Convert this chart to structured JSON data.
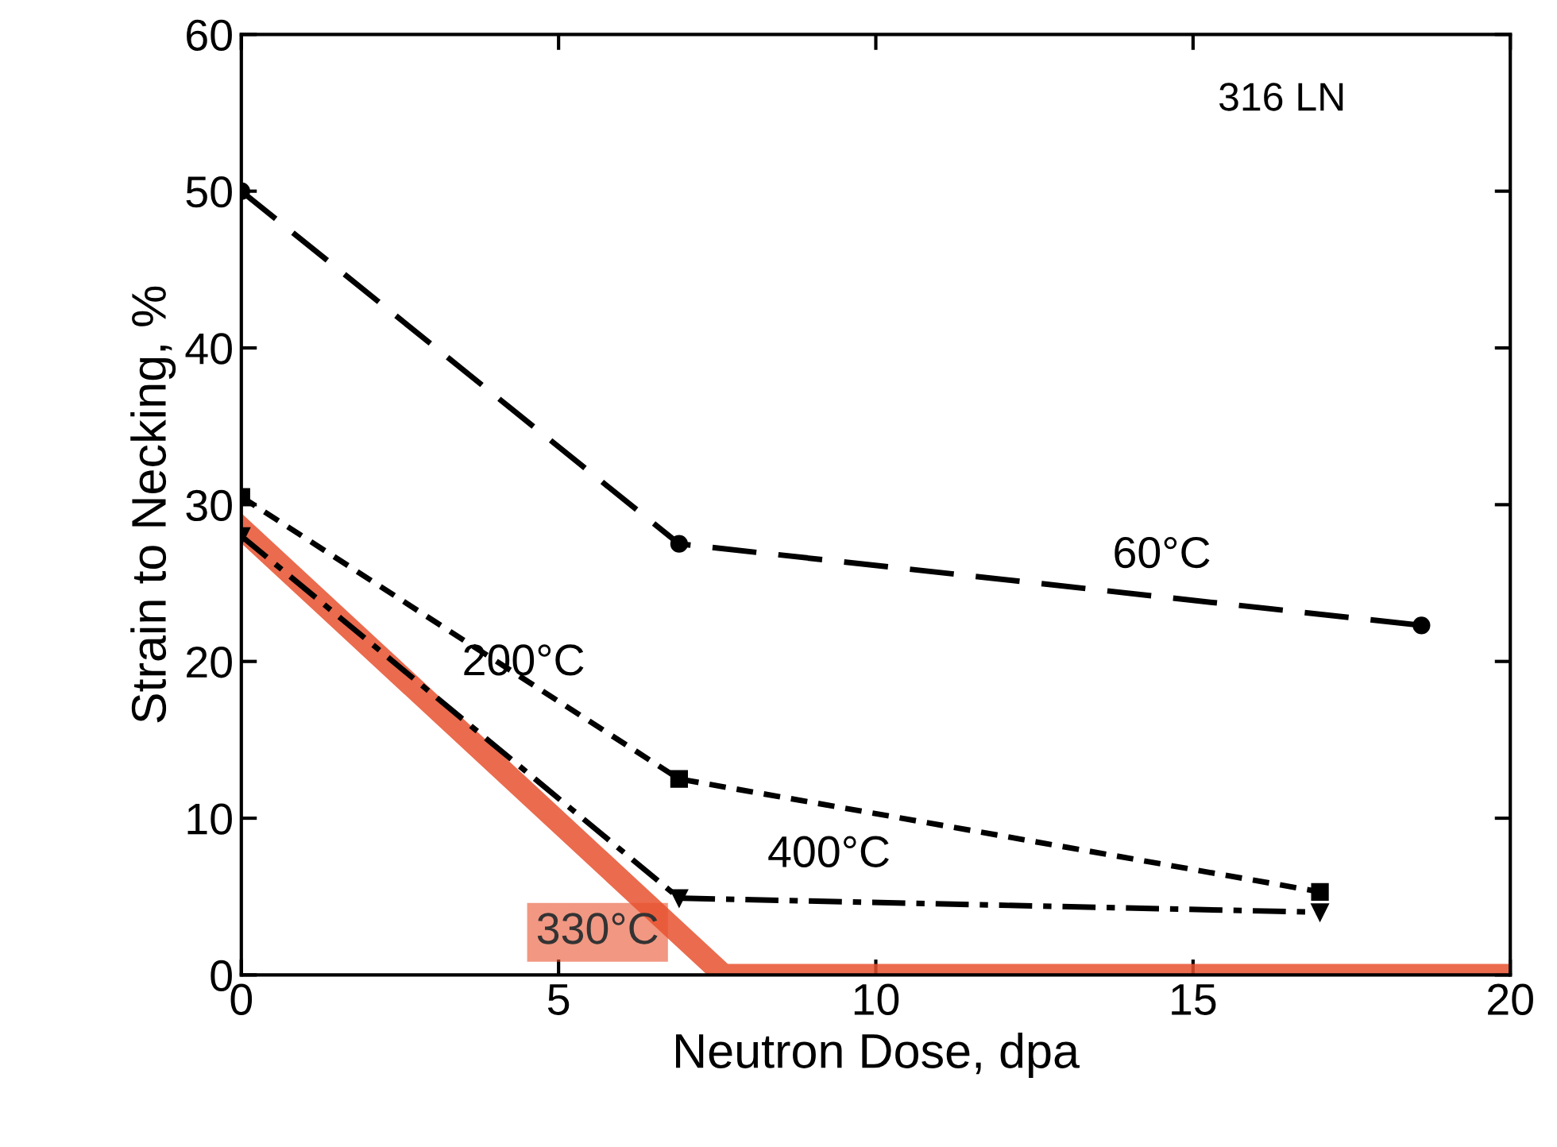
{
  "chart_data": {
    "type": "line",
    "xlabel": "Neutron Dose, dpa",
    "ylabel": "Strain to Necking, %",
    "annotations": [
      "316 LN"
    ],
    "xlim": [
      0,
      20
    ],
    "ylim": [
      0,
      60
    ],
    "xticks": [
      0,
      5,
      10,
      15,
      20
    ],
    "yticks": [
      0,
      10,
      20,
      30,
      40,
      50,
      60
    ],
    "grid": false,
    "legend": false,
    "series": [
      {
        "name": "60°C",
        "color": "#000000",
        "x": [
          0,
          6.9,
          18.6
        ],
        "values": [
          50,
          27.5,
          22.3
        ],
        "line_style": "dashed",
        "marker": "circle"
      },
      {
        "name": "200°C",
        "color": "#000000",
        "x": [
          0,
          6.9,
          17
        ],
        "values": [
          30.5,
          12.5,
          5.3
        ],
        "line_style": "dotted",
        "marker": "square"
      },
      {
        "name": "400°C",
        "color": "#000000",
        "x": [
          0,
          6.9,
          17
        ],
        "values": [
          28,
          4.9,
          4
        ],
        "line_style": "dashdot",
        "marker": "triangle"
      },
      {
        "name": "330°C",
        "color": "#e8512f",
        "x": [
          0,
          7.6,
          20
        ],
        "values": [
          28.5,
          0,
          0
        ],
        "line_style": "solid",
        "marker": "none"
      }
    ]
  }
}
